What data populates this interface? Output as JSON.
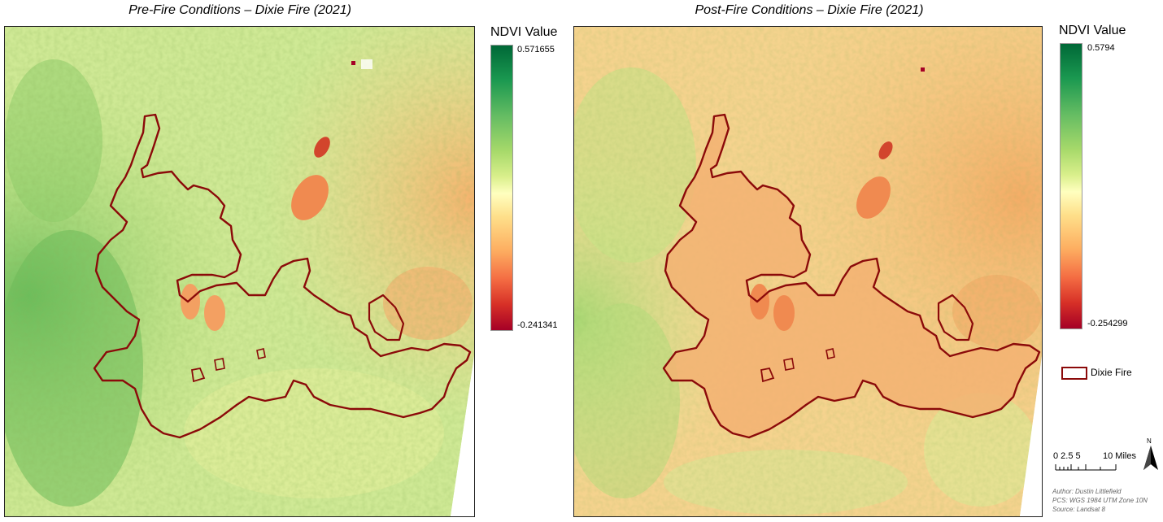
{
  "panels": [
    {
      "title": "Pre-Fire Conditions – Dixie Fire (2021)",
      "legend_title": "NDVI Value",
      "ndvi_max": "0.571655",
      "ndvi_min": "-0.241341"
    },
    {
      "title": "Post-Fire Conditions – Dixie Fire (2021)",
      "legend_title": "NDVI Value",
      "ndvi_max": "0.5794",
      "ndvi_min": "-0.254299"
    }
  ],
  "legend": {
    "ramp_colors": [
      "#006837",
      "#1a9850",
      "#66bd63",
      "#a6d96a",
      "#d9ef8b",
      "#ffffbf",
      "#fee08b",
      "#fdae61",
      "#f46d43",
      "#d73027",
      "#a50026"
    ],
    "fire_label": "Dixie Fire",
    "fire_color": "#8b0a0a"
  },
  "scale": {
    "ticks_label": "0 2.5 5",
    "end_label": "10 Miles"
  },
  "north_label": "N",
  "credits": [
    "Author: Dustin Littlefield",
    "PCS: WGS 1984 UTM Zone 10N",
    "Source: Landsat 8"
  ]
}
